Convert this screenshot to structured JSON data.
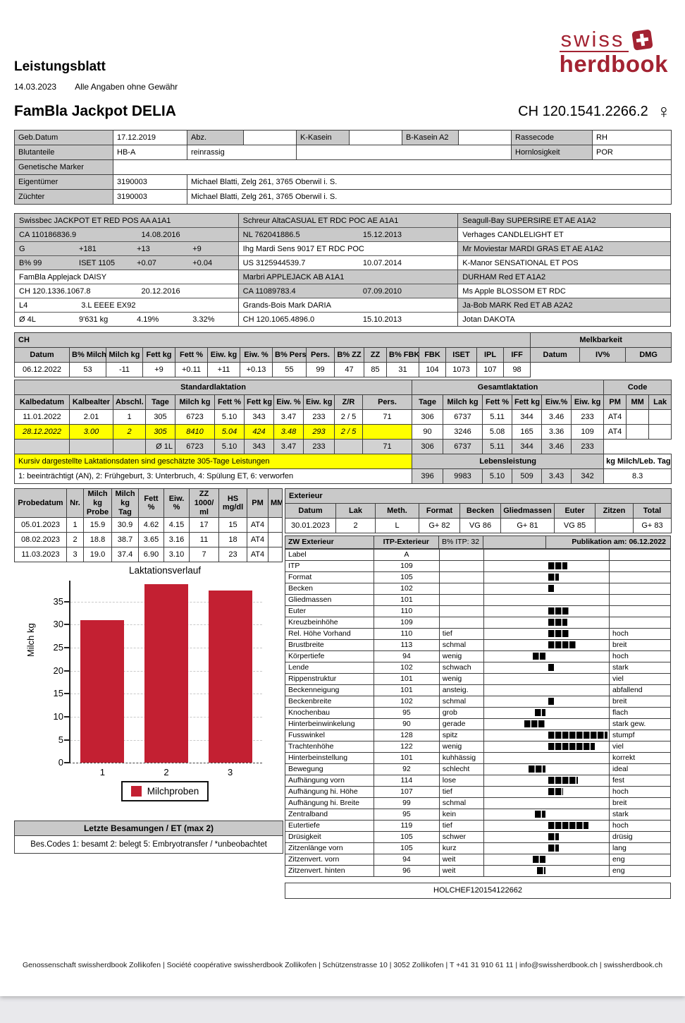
{
  "meta": {
    "title": "Leistungsblatt",
    "date": "14.03.2023",
    "disclaimer": "Alle Angaben ohne Gewähr"
  },
  "logo": {
    "line1": "swiss",
    "line2": "herdbook",
    "color": "#a32332"
  },
  "animal": {
    "name": "FamBla Jackpot DELIA",
    "id": "CH 120.1541.2266.2",
    "sex_symbol": "♀"
  },
  "info": {
    "geb_label": "Geb.Datum",
    "geb": "17.12.2019",
    "abz_label": "Abz.",
    "abz": "",
    "kkasein_label": "K-Kasein",
    "kkasein": "",
    "bkasein_label": "B-Kasein A2",
    "bkasein": "",
    "rassecode_label": "Rassecode",
    "rassecode": "RH",
    "blut_label": "Blutanteile",
    "blut": "HB-A",
    "blut2": "reinrassig",
    "horn_label": "Hornlosigkeit",
    "horn": "POR",
    "marker_label": "Genetische Marker",
    "marker": "",
    "eigentuemer_label": "Eigentümer",
    "eigentuemer_nr": "3190003",
    "eigentuemer": "Michael Blatti, Zelg 261, 3765 Oberwil i. S.",
    "zuechter_label": "Züchter",
    "zuechter_nr": "3190003",
    "zuechter": "Michael Blatti, Zelg 261, 3765 Oberwil i. S."
  },
  "pedigree": {
    "col1": [
      {
        "t": "name",
        "bg": "g",
        "c": [
          "Swissbec JACKPOT ET RED POS AA A1A1"
        ]
      },
      {
        "t": "id",
        "bg": "g",
        "c": [
          "CA 110186836.9",
          "14.08.2016"
        ]
      },
      {
        "t": "quad",
        "bg": "g",
        "c": [
          "G",
          "+181",
          "+13",
          "+9"
        ]
      },
      {
        "t": "quad",
        "bg": "g",
        "c": [
          "B% 99",
          "ISET 1105",
          "+0.07",
          "+0.04"
        ]
      },
      {
        "t": "name",
        "bg": "w",
        "c": [
          "FamBla Applejack DAISY"
        ]
      },
      {
        "t": "id",
        "bg": "w",
        "c": [
          "CH 120.1336.1067.8",
          "20.12.2016"
        ]
      },
      {
        "t": "duo",
        "bg": "w",
        "c": [
          "L4",
          "3.L EEEE EX92"
        ]
      },
      {
        "t": "quad",
        "bg": "w",
        "c": [
          "Ø 4L",
          "9'631 kg",
          "4.19%",
          "3.32%"
        ]
      }
    ],
    "col2": [
      {
        "t": "name",
        "bg": "g",
        "c": [
          "Schreur AltaCASUAL ET RDC POC AE A1A1"
        ]
      },
      {
        "t": "id",
        "bg": "g",
        "c": [
          "NL 762041886.5",
          "15.12.2013"
        ]
      },
      {
        "t": "name",
        "bg": "w",
        "c": [
          "Ihg Mardi Sens 9017 ET RDC POC"
        ]
      },
      {
        "t": "id",
        "bg": "w",
        "c": [
          "US 3125944539.7",
          "10.07.2014"
        ]
      },
      {
        "t": "name",
        "bg": "g",
        "c": [
          "Marbri APPLEJACK AB A1A1"
        ]
      },
      {
        "t": "id",
        "bg": "g",
        "c": [
          "CA 11089783.4",
          "07.09.2010"
        ]
      },
      {
        "t": "name",
        "bg": "w",
        "c": [
          "Grands-Bois Mark DARIA"
        ]
      },
      {
        "t": "id",
        "bg": "w",
        "c": [
          "CH 120.1065.4896.0",
          "15.10.2013"
        ]
      }
    ],
    "col3": [
      {
        "t": "name",
        "bg": "g",
        "c": [
          "Seagull-Bay SUPERSIRE ET AE A1A2"
        ]
      },
      {
        "t": "name",
        "bg": "w",
        "c": [
          "Verhages CANDLELIGHT ET"
        ]
      },
      {
        "t": "name",
        "bg": "g",
        "c": [
          "Mr Moviestar MARDI GRAS ET AE A1A2"
        ]
      },
      {
        "t": "name",
        "bg": "w",
        "c": [
          "K-Manor SENSATIONAL ET POS"
        ]
      },
      {
        "t": "name",
        "bg": "g",
        "c": [
          "DURHAM Red ET A1A2"
        ]
      },
      {
        "t": "name",
        "bg": "w",
        "c": [
          "Ms Apple BLOSSOM ET RDC"
        ]
      },
      {
        "t": "name",
        "bg": "g",
        "c": [
          "Ja-Bob MARK Red ET AB A2A2"
        ]
      },
      {
        "t": "name",
        "bg": "w",
        "c": [
          "Jotan DAKOTA"
        ]
      }
    ]
  },
  "ch": {
    "title": "CH",
    "melk_title": "Melkbarkeit",
    "headers": [
      "Datum",
      "B% Milch",
      "Milch kg",
      "Fett kg",
      "Fett %",
      "Eiw. kg",
      "Eiw. %",
      "B% Pers.",
      "Pers.",
      "B% ZZ",
      "ZZ",
      "B% FBK",
      "FBK",
      "ISET",
      "IPL",
      "IFF"
    ],
    "melk_headers": [
      "Datum",
      "IV%",
      "DMG"
    ],
    "row": [
      "06.12.2022",
      "53",
      "-11",
      "+9",
      "+0.11",
      "+11",
      "+0.13",
      "55",
      "99",
      "47",
      "85",
      "31",
      "104",
      "1073",
      "107",
      "98"
    ]
  },
  "lactation": {
    "group_headers": [
      "Standardlaktation",
      "Gesamtlaktation",
      "Code"
    ],
    "headers": [
      "Kalbedatum",
      "Kalbealter",
      "Abschl.",
      "Tage",
      "Milch kg",
      "Fett %",
      "Fett kg",
      "Eiw. %",
      "Eiw. kg",
      "Z/R",
      "Pers.",
      "Tage",
      "Milch kg",
      "Fett %",
      "Fett kg",
      "Eiw.%",
      "Eiw. kg",
      "PM",
      "MM",
      "Lak"
    ],
    "rows": [
      {
        "style": "normal",
        "cells": [
          "11.01.2022",
          "2.01",
          "1",
          "305",
          "6723",
          "5.10",
          "343",
          "3.47",
          "233",
          "2 / 5",
          "71",
          "306",
          "6737",
          "5.11",
          "344",
          "3.46",
          "233",
          "AT4",
          "",
          ""
        ]
      },
      {
        "style": "est",
        "cells": [
          "28.12.2022",
          "3.00",
          "2",
          "305",
          "8410",
          "5.04",
          "424",
          "3.48",
          "293",
          "2 / 5",
          "",
          "90",
          "3246",
          "5.08",
          "165",
          "3.36",
          "109",
          "AT4",
          "",
          ""
        ]
      }
    ],
    "avg_label": "Ø 1L",
    "avg_row": [
      "6723",
      "5.10",
      "343",
      "3.47",
      "233",
      "",
      "71",
      "306",
      "6737",
      "5.11",
      "344",
      "3.46",
      "233"
    ],
    "note_italic": "Kursiv dargestellte Laktationsdaten sind geschätzte 305-Tage Leistungen",
    "lebensleistung_label": "Lebensleistung",
    "kg_label": "kg Milch/Leb. Tag:",
    "codes_note": "1: beeinträchtigt (AN), 2: Frühgeburt, 3: Unterbruch, 4: Spülung ET, 6: verworfen",
    "lebensleistung_values": [
      "396",
      "9983",
      "5.10",
      "509",
      "3.43",
      "342"
    ],
    "kg_value": "8.3"
  },
  "probe": {
    "headers": [
      "Probedatum",
      "Nr.",
      "Milch kg Probe",
      "Milch kg Tag",
      "Fett %",
      "Eiw. %",
      "ZZ 1000/ ml",
      "HS mg/dl",
      "PM",
      "MM"
    ],
    "rows": [
      [
        "05.01.2023",
        "1",
        "15.9",
        "30.9",
        "4.62",
        "4.15",
        "17",
        "15",
        "AT4",
        ""
      ],
      [
        "08.02.2023",
        "2",
        "18.8",
        "38.7",
        "3.65",
        "3.16",
        "11",
        "18",
        "AT4",
        ""
      ],
      [
        "11.03.2023",
        "3",
        "19.0",
        "37.4",
        "6.90",
        "3.10",
        "7",
        "23",
        "AT4",
        ""
      ]
    ]
  },
  "chart_data": {
    "type": "bar",
    "title": "Laktationsverlauf",
    "categories": [
      "1",
      "2",
      "3"
    ],
    "values": [
      30.9,
      38.7,
      37.4
    ],
    "xlabel": "",
    "ylabel": "Milch kg",
    "yticks": [
      0,
      5,
      10,
      15,
      20,
      25,
      30,
      35
    ],
    "ylim": [
      0,
      39.5
    ],
    "grid": "dashed horizontal",
    "legend": [
      "Milchproben"
    ],
    "legend_position": "bottom",
    "bar_color": "#c32032"
  },
  "besamungen": {
    "header": "Letzte Besamungen / ET (max 2)",
    "codes": "Bes.Codes 1: besamt 2: belegt 5: Embryotransfer / *unbeobachtet"
  },
  "exterieur": {
    "title": "Exterieur",
    "headers": [
      "Datum",
      "Lak",
      "Meth.",
      "Format",
      "Becken",
      "Gliedmassen",
      "Euter",
      "Zitzen",
      "Total"
    ],
    "row": [
      "30.01.2023",
      "2",
      "L",
      "G+ 82",
      "VG 86",
      "G+ 81",
      "VG 85",
      "",
      "G+ 83"
    ],
    "zw_label": "ZW Exterieur",
    "itp_label": "ITP-Exterieur",
    "bpercent": "B% ITP: 32",
    "publikation": "Publikation am: 06.12.2022",
    "traits": [
      {
        "name": "Label",
        "value": "A",
        "low": "",
        "high": ""
      },
      {
        "name": "ITP",
        "value": "109",
        "low": "",
        "high": ""
      },
      {
        "name": "Format",
        "value": "105",
        "low": "",
        "high": ""
      },
      {
        "name": "Becken",
        "value": "102",
        "low": "",
        "high": ""
      },
      {
        "name": "Gliedmassen",
        "value": "101",
        "low": "",
        "high": ""
      },
      {
        "name": "Euter",
        "value": "110",
        "low": "",
        "high": ""
      },
      {
        "name": "Kreuzbeinhöhe",
        "value": "109",
        "low": "",
        "high": ""
      },
      {
        "name": "Rel. Höhe Vorhand",
        "value": "110",
        "low": "tief",
        "high": "hoch"
      },
      {
        "name": "Brustbreite",
        "value": "113",
        "low": "schmal",
        "high": "breit"
      },
      {
        "name": "Körpertiefe",
        "value": "94",
        "low": "wenig",
        "high": "hoch"
      },
      {
        "name": "Lende",
        "value": "102",
        "low": "schwach",
        "high": "stark"
      },
      {
        "name": "Rippenstruktur",
        "value": "101",
        "low": "wenig",
        "high": "viel"
      },
      {
        "name": "Beckenneigung",
        "value": "101",
        "low": "ansteig.",
        "high": "abfallend"
      },
      {
        "name": "Beckenbreite",
        "value": "102",
        "low": "schmal",
        "high": "breit"
      },
      {
        "name": "Knochenbau",
        "value": "95",
        "low": "grob",
        "high": "flach"
      },
      {
        "name": "Hinterbeinwinkelung",
        "value": "90",
        "low": "gerade",
        "high": "stark gew."
      },
      {
        "name": "Fusswinkel",
        "value": "128",
        "low": "spitz",
        "high": "stumpf"
      },
      {
        "name": "Trachtenhöhe",
        "value": "122",
        "low": "wenig",
        "high": "viel"
      },
      {
        "name": "Hinterbeinstellung",
        "value": "101",
        "low": "kuhhässig",
        "high": "korrekt"
      },
      {
        "name": "Bewegung",
        "value": "92",
        "low": "schlecht",
        "high": "ideal"
      },
      {
        "name": "Aufhängung vorn",
        "value": "114",
        "low": "lose",
        "high": "fest"
      },
      {
        "name": "Aufhängung hi. Höhe",
        "value": "107",
        "low": "tief",
        "high": "hoch"
      },
      {
        "name": "Aufhängung hi. Breite",
        "value": "99",
        "low": "schmal",
        "high": "breit"
      },
      {
        "name": "Zentralband",
        "value": "95",
        "low": "kein",
        "high": "stark"
      },
      {
        "name": "Eutertiefe",
        "value": "119",
        "low": "tief",
        "high": "hoch"
      },
      {
        "name": "Drüsigkeit",
        "value": "105",
        "low": "schwer",
        "high": "drüsig"
      },
      {
        "name": "Zitzenlänge vorn",
        "value": "105",
        "low": "kurz",
        "high": "lang"
      },
      {
        "name": "Zitzenvert. vorn",
        "value": "94",
        "low": "weit",
        "high": "eng"
      },
      {
        "name": "Zitzenvert. hinten",
        "value": "96",
        "low": "weit",
        "high": "eng"
      }
    ]
  },
  "holchef": "HOLCHEF120154122662",
  "footer": "Genossenschaft swissherdbook Zollikofen | Société coopérative swissherdbook Zollikofen | Schützenstrasse 10 | 3052 Zollikofen | T +41 31 910 61 11 | info@swissherdbook.ch | swissherdbook.ch"
}
